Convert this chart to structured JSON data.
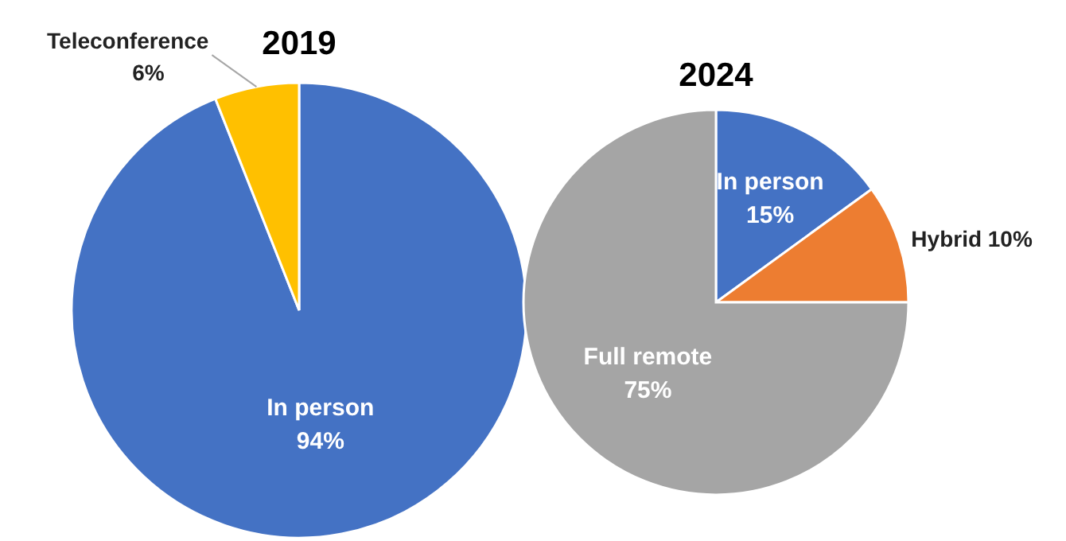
{
  "chart_data": [
    {
      "type": "pie",
      "title": "2019",
      "categories": [
        "In person",
        "Teleconference"
      ],
      "values": [
        94,
        6
      ],
      "colors": [
        "#4472c4",
        "#ffc000"
      ],
      "value_labels": [
        "94%",
        "6%"
      ]
    },
    {
      "type": "pie",
      "title": "2024",
      "categories": [
        "In person",
        "Hybrid",
        "Full remote"
      ],
      "values": [
        15,
        10,
        75
      ],
      "colors": [
        "#4472c4",
        "#ed7d31",
        "#a5a5a5"
      ],
      "value_labels": [
        "15%",
        "10%",
        "75%"
      ]
    }
  ]
}
